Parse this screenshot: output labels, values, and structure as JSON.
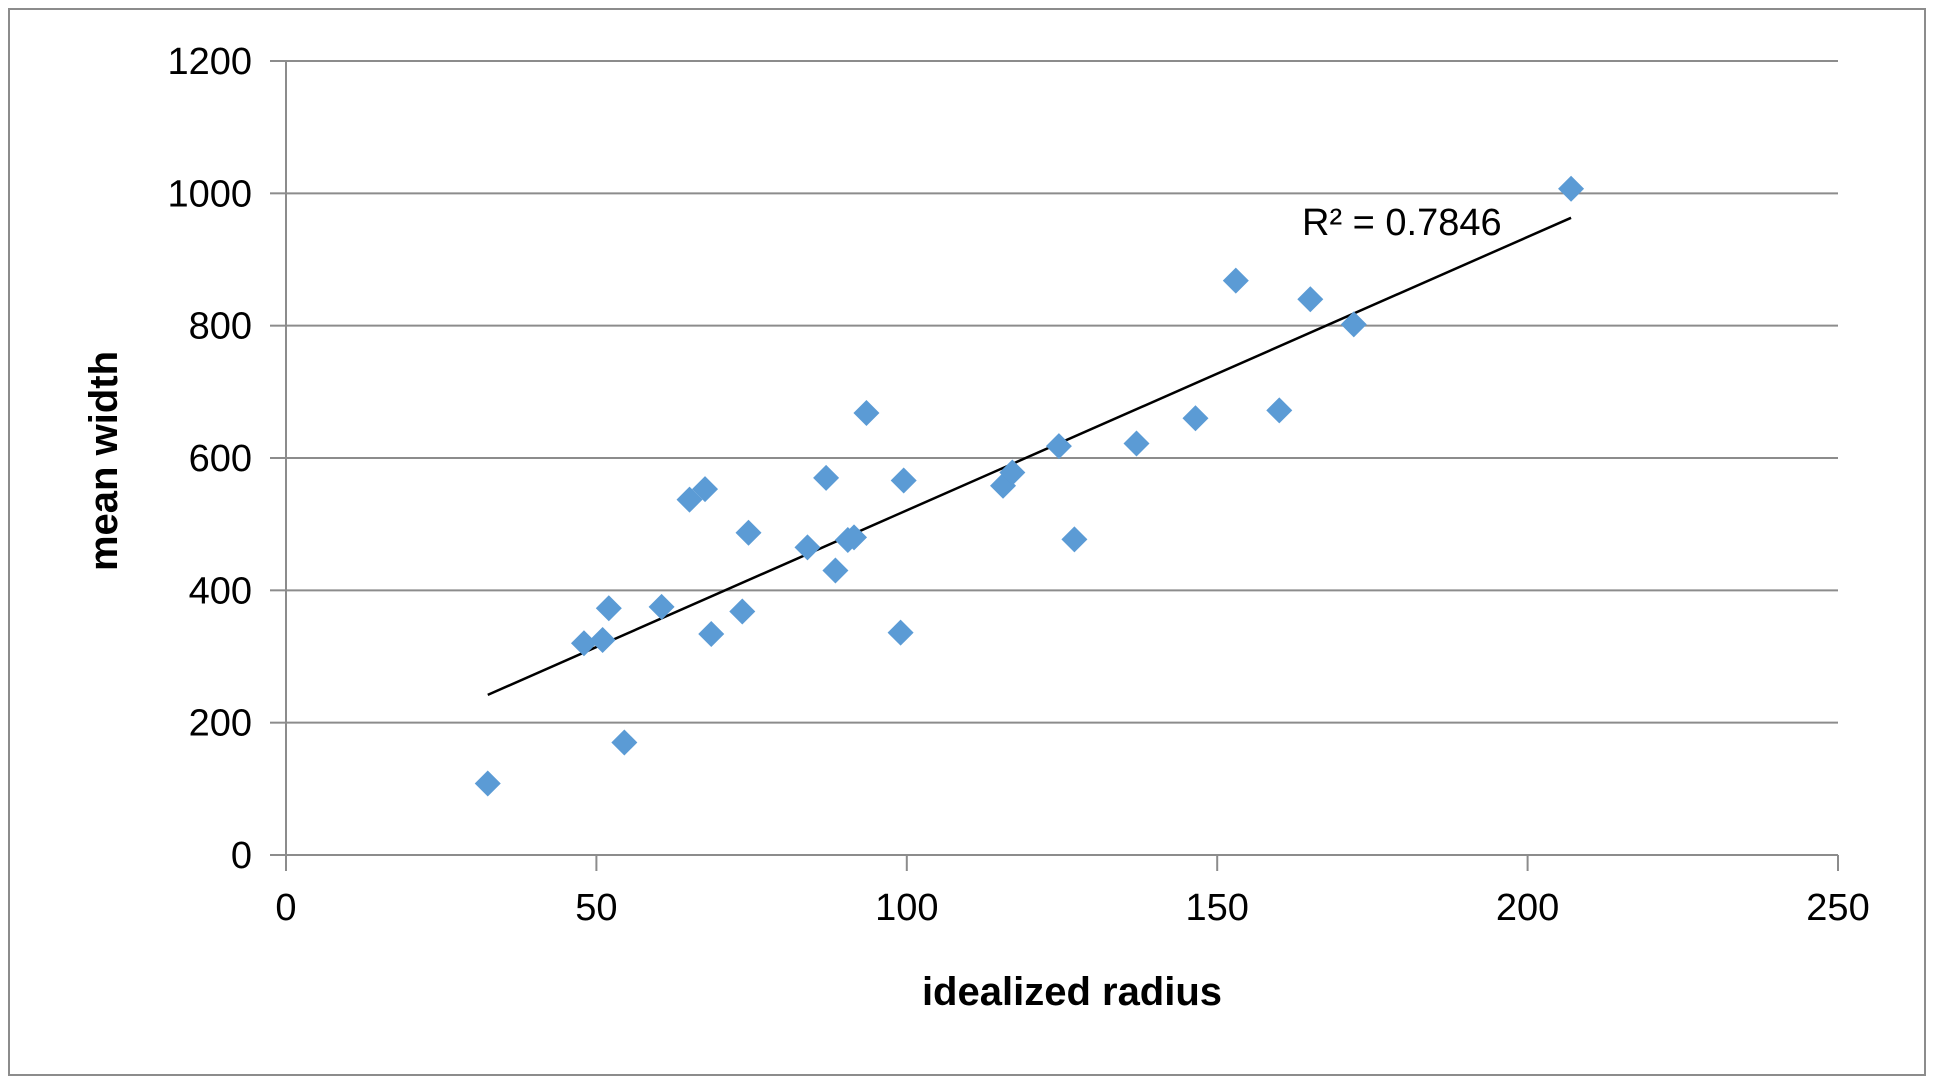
{
  "chart_data": {
    "type": "scatter",
    "title": "",
    "xlabel": "idealized radius",
    "ylabel": "mean width",
    "xlim": [
      0,
      250
    ],
    "ylim": [
      0,
      1200
    ],
    "x_ticks": [
      0,
      50,
      100,
      150,
      200,
      250
    ],
    "y_ticks": [
      0,
      200,
      400,
      600,
      800,
      1000,
      1200
    ],
    "grid": "horizontal",
    "legend": "none",
    "marker": "diamond",
    "colors": {
      "points": "#5b9bd5",
      "trendline": "#000000",
      "gridline": "#8c8c8c"
    },
    "series": [
      {
        "points": [
          {
            "x": 32.5,
            "y": 108
          },
          {
            "x": 48,
            "y": 320
          },
          {
            "x": 51,
            "y": 325
          },
          {
            "x": 52,
            "y": 373
          },
          {
            "x": 54.5,
            "y": 170
          },
          {
            "x": 60.5,
            "y": 375
          },
          {
            "x": 65,
            "y": 537
          },
          {
            "x": 67.5,
            "y": 553
          },
          {
            "x": 68.5,
            "y": 334
          },
          {
            "x": 73.5,
            "y": 368
          },
          {
            "x": 74.5,
            "y": 487
          },
          {
            "x": 84,
            "y": 465
          },
          {
            "x": 87,
            "y": 570
          },
          {
            "x": 88.5,
            "y": 430
          },
          {
            "x": 90.5,
            "y": 476
          },
          {
            "x": 91.5,
            "y": 480
          },
          {
            "x": 93.5,
            "y": 668
          },
          {
            "x": 99,
            "y": 336
          },
          {
            "x": 99.5,
            "y": 566
          },
          {
            "x": 115.5,
            "y": 558
          },
          {
            "x": 117,
            "y": 578
          },
          {
            "x": 124.5,
            "y": 618
          },
          {
            "x": 127,
            "y": 477
          },
          {
            "x": 137,
            "y": 622
          },
          {
            "x": 146.5,
            "y": 660
          },
          {
            "x": 153,
            "y": 868
          },
          {
            "x": 160,
            "y": 672
          },
          {
            "x": 165,
            "y": 840
          },
          {
            "x": 172,
            "y": 802
          },
          {
            "x": 207,
            "y": 1007
          }
        ]
      }
    ],
    "trendline": {
      "type": "linear",
      "from": {
        "x": 32.5,
        "y": 242
      },
      "to": {
        "x": 207,
        "y": 963
      },
      "label": "R² = 0.7846"
    }
  }
}
